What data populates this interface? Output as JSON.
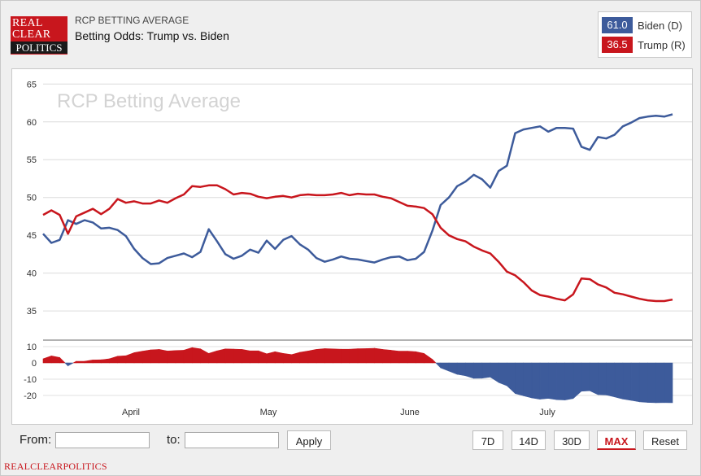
{
  "header": {
    "logo": {
      "line1": "REAL",
      "line2": "CLEAR",
      "line3": "POLITICS"
    },
    "subtitle": "RCP BETTING AVERAGE",
    "title": "Betting Odds: Trump vs. Biden"
  },
  "legend": [
    {
      "value": "61.0",
      "label": "Biden (D)",
      "color": "#3d5b9b"
    },
    {
      "value": "36.5",
      "label": "Trump (R)",
      "color": "#c8161d"
    }
  ],
  "chart_data": {
    "type": "line",
    "title": "RCP Betting Average",
    "x_labels": [
      "April",
      "May",
      "June",
      "July"
    ],
    "y_ticks": [
      35,
      40,
      45,
      50,
      55,
      60,
      65
    ],
    "ylim": [
      32,
      66
    ],
    "spread_ticks": [
      10,
      0,
      -10,
      -20
    ],
    "spread_ylim": [
      -28,
      13
    ],
    "series": [
      {
        "name": "Biden (D)",
        "color": "#3d5b9b",
        "values": [
          45.2,
          44,
          44.4,
          47,
          46.5,
          47,
          46.7,
          45.9,
          46,
          45.7,
          44.9,
          43.2,
          42,
          41.2,
          41.3,
          42,
          42.3,
          42.6,
          42.1,
          42.8,
          45.8,
          44.2,
          42.5,
          41.9,
          42.3,
          43.1,
          42.7,
          44.3,
          43.2,
          44.4,
          44.9,
          43.8,
          43.1,
          42,
          41.5,
          41.8,
          42.2,
          41.9,
          41.8,
          41.6,
          41.4,
          41.8,
          42.1,
          42.2,
          41.7,
          41.9,
          42.8,
          45.6,
          49,
          50,
          51.5,
          52.1,
          53,
          52.4,
          51.3,
          53.5,
          54.2,
          58.5,
          59,
          59.2,
          59.4,
          58.7,
          59.2,
          59.2,
          59.1,
          56.7,
          56.3,
          58,
          57.8,
          58.3,
          59.4,
          59.9,
          60.5,
          60.7,
          60.8,
          60.7,
          61
        ]
      },
      {
        "name": "Trump (R)",
        "color": "#c8161d",
        "values": [
          47.7,
          48.3,
          47.7,
          45.2,
          47.5,
          48,
          48.5,
          47.8,
          48.5,
          49.8,
          49.3,
          49.5,
          49.2,
          49.2,
          49.6,
          49.3,
          49.9,
          50.4,
          51.5,
          51.4,
          51.6,
          51.6,
          51.1,
          50.4,
          50.6,
          50.5,
          50.1,
          49.9,
          50.1,
          50.2,
          50,
          50.3,
          50.4,
          50.3,
          50.3,
          50.4,
          50.6,
          50.3,
          50.5,
          50.4,
          50.4,
          50.1,
          49.9,
          49.4,
          48.9,
          48.8,
          48.6,
          47.8,
          46,
          45,
          44.5,
          44.2,
          43.5,
          43,
          42.6,
          41.5,
          40.2,
          39.7,
          38.8,
          37.7,
          37.1,
          36.9,
          36.6,
          36.4,
          37.2,
          39.3,
          39.2,
          38.5,
          38.1,
          37.4,
          37.2,
          36.9,
          36.6,
          36.4,
          36.3,
          36.3,
          36.5
        ]
      }
    ],
    "spread_series": {
      "name": "Trump - Biden spread",
      "color_positive": "#c8161d",
      "color_negative": "#3d5b9b"
    }
  },
  "controls": {
    "from_label": "From:",
    "to_label": "to:",
    "from_value": "",
    "to_value": "",
    "apply": "Apply",
    "ranges": [
      "7D",
      "14D",
      "30D",
      "MAX",
      "Reset"
    ],
    "active_range": "MAX"
  },
  "footer": "REALCLEARPOLITICS"
}
